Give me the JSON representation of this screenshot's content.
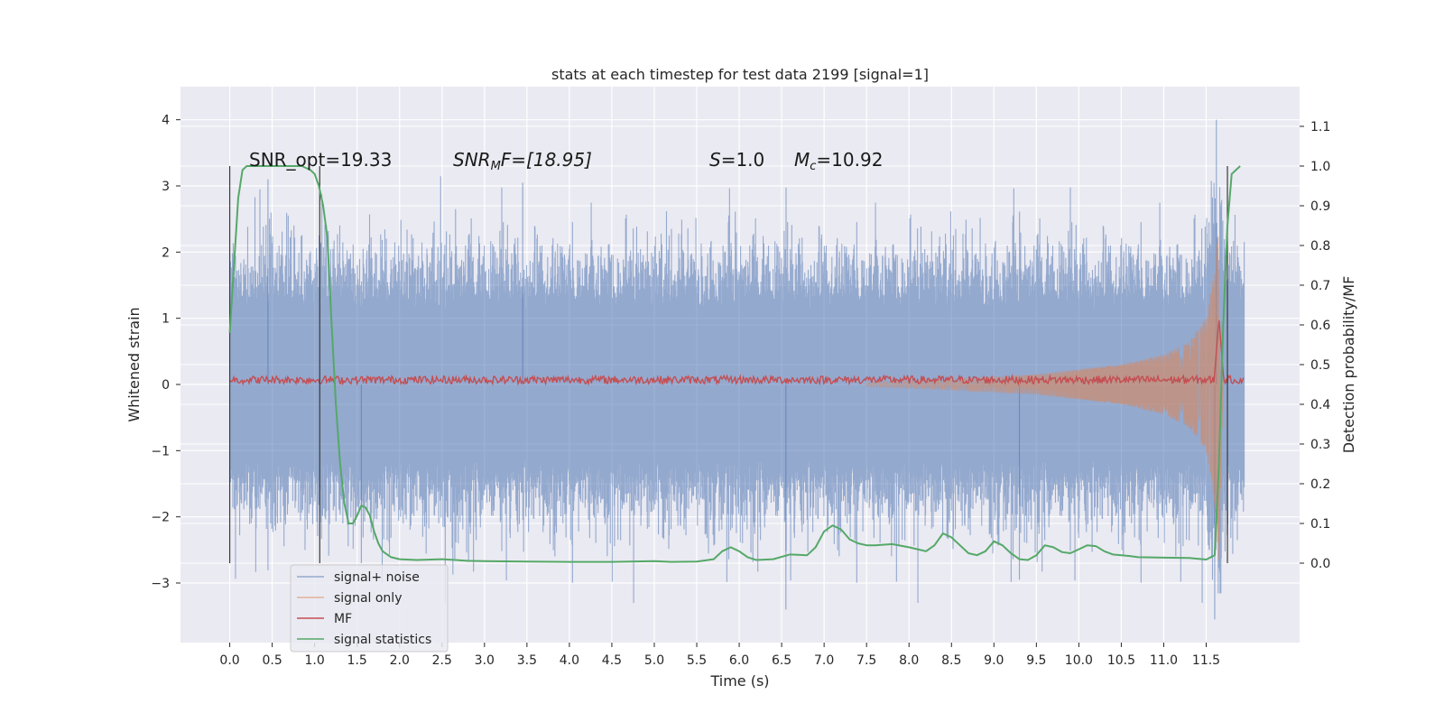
{
  "chart_data": {
    "type": "line",
    "title": "stats at each timestep for test data 2199 [signal=1]",
    "xlabel": "Time (s)",
    "ylabel_left": "Whitened strain",
    "ylabel_right": "Detection probability/MF",
    "xlim": [
      -0.58,
      12.6
    ],
    "ylim_left": [
      -3.9,
      4.5
    ],
    "ylim_right": [
      -0.2,
      1.2
    ],
    "x_ticks": [
      "0.0",
      "0.5",
      "1.0",
      "1.5",
      "2.0",
      "2.5",
      "3.0",
      "3.5",
      "4.0",
      "4.5",
      "5.0",
      "5.5",
      "6.0",
      "6.5",
      "7.0",
      "7.5",
      "8.0",
      "8.5",
      "9.0",
      "9.5",
      "10.0",
      "10.5",
      "11.0",
      "11.5"
    ],
    "y_ticks_left": [
      "−3",
      "−2",
      "−1",
      "0",
      "1",
      "2",
      "3",
      "4"
    ],
    "y_ticks_right": [
      "0.0",
      "0.1",
      "0.2",
      "0.3",
      "0.4",
      "0.5",
      "0.6",
      "0.7",
      "0.8",
      "0.9",
      "1.0",
      "1.1"
    ],
    "grid": true,
    "legend_position": "lower-left",
    "annotations": {
      "snr_opt": "SNR_opt=19.33",
      "snr_mf_main": "SNR",
      "snr_mf_sub": "M",
      "snr_mf_rest": "F=[18.95]",
      "s_main": "S",
      "s_rest": "=1.0",
      "mc_main": "M",
      "mc_sub": "c",
      "mc_rest": "=10.92"
    },
    "vertical_markers": [
      0.0,
      1.06,
      11.75
    ],
    "series": [
      {
        "name": "signal+ noise",
        "axis": "left",
        "color": "#4c72b0",
        "note_envelope": "noise",
        "x": [
          0.0,
          11.95
        ],
        "amplitude_typical": 1.5,
        "amplitude_peak": 4.0
      },
      {
        "name": "signal only",
        "axis": "left",
        "color": "#dd8452",
        "x": [
          7.5,
          8.5,
          9.5,
          10.5,
          11.0,
          11.3,
          11.5,
          11.6,
          11.65,
          11.7
        ],
        "envelope": [
          0.03,
          0.08,
          0.15,
          0.3,
          0.45,
          0.65,
          1.0,
          1.8,
          2.8,
          0.0
        ]
      },
      {
        "name": "MF",
        "axis": "left",
        "color": "#c44e52",
        "x": [
          11.6,
          11.65,
          11.7
        ],
        "peak": [
          0.2,
          1.0,
          0.15
        ],
        "baseline": 0.07
      },
      {
        "name": "signal statistics",
        "axis": "right",
        "color": "#55a868",
        "x": [
          0.0,
          0.05,
          0.1,
          0.15,
          0.2,
          0.3,
          0.5,
          0.7,
          0.85,
          0.95,
          1.0,
          1.05,
          1.1,
          1.15,
          1.2,
          1.25,
          1.3,
          1.35,
          1.4,
          1.45,
          1.5,
          1.55,
          1.6,
          1.65,
          1.7,
          1.75,
          1.8,
          1.9,
          2.0,
          2.2,
          2.5,
          2.8,
          3.0,
          3.5,
          4.0,
          4.5,
          5.0,
          5.2,
          5.5,
          5.7,
          5.8,
          5.9,
          6.0,
          6.1,
          6.2,
          6.4,
          6.6,
          6.8,
          6.9,
          7.0,
          7.1,
          7.2,
          7.3,
          7.4,
          7.5,
          7.6,
          7.8,
          8.0,
          8.2,
          8.3,
          8.4,
          8.5,
          8.6,
          8.7,
          8.8,
          8.9,
          9.0,
          9.1,
          9.2,
          9.3,
          9.4,
          9.5,
          9.6,
          9.7,
          9.8,
          9.9,
          10.0,
          10.1,
          10.2,
          10.3,
          10.4,
          10.5,
          10.6,
          10.7,
          11.0,
          11.3,
          11.5,
          11.6,
          11.65,
          11.7,
          11.75,
          11.8,
          11.85,
          11.9
        ],
        "values": [
          0.58,
          0.75,
          0.92,
          0.99,
          1.0,
          1.0,
          1.0,
          1.0,
          1.0,
          0.99,
          0.98,
          0.95,
          0.9,
          0.82,
          0.6,
          0.4,
          0.25,
          0.15,
          0.1,
          0.1,
          0.12,
          0.145,
          0.14,
          0.12,
          0.08,
          0.05,
          0.03,
          0.015,
          0.01,
          0.008,
          0.01,
          0.006,
          0.005,
          0.004,
          0.003,
          0.003,
          0.005,
          0.003,
          0.004,
          0.01,
          0.03,
          0.04,
          0.03,
          0.015,
          0.008,
          0.01,
          0.022,
          0.02,
          0.04,
          0.08,
          0.095,
          0.085,
          0.06,
          0.05,
          0.045,
          0.045,
          0.048,
          0.04,
          0.03,
          0.045,
          0.075,
          0.065,
          0.045,
          0.025,
          0.02,
          0.03,
          0.055,
          0.045,
          0.025,
          0.01,
          0.008,
          0.02,
          0.045,
          0.04,
          0.028,
          0.025,
          0.035,
          0.045,
          0.043,
          0.03,
          0.022,
          0.02,
          0.018,
          0.015,
          0.014,
          0.013,
          0.009,
          0.02,
          0.25,
          0.6,
          0.85,
          0.98,
          0.99,
          1.0
        ]
      }
    ]
  }
}
